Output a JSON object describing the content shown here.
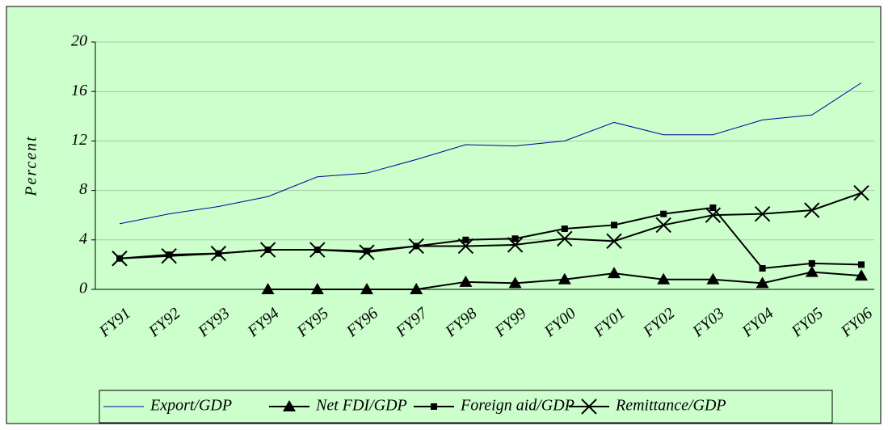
{
  "chart_data": {
    "type": "line",
    "y_label": "Percent",
    "categories": [
      "FY91",
      "FY92",
      "FY93",
      "FY94",
      "FY95",
      "FY96",
      "FY97",
      "FY98",
      "FY99",
      "FY00",
      "FY01",
      "FY02",
      "FY03",
      "FY04",
      "FY05",
      "FY06"
    ],
    "series": [
      {
        "name": "Export/GDP",
        "color": "#000099",
        "marker": "none",
        "values": [
          5.3,
          6.1,
          6.7,
          7.5,
          9.1,
          9.4,
          10.5,
          11.7,
          11.6,
          12.0,
          13.5,
          12.5,
          12.5,
          13.7,
          14.1,
          16.7
        ]
      },
      {
        "name": "Net FDI/GDP",
        "color": "#000000",
        "marker": "triangle",
        "values": [
          null,
          null,
          null,
          0,
          0,
          0,
          0,
          0.6,
          0.5,
          0.8,
          1.3,
          0.8,
          0.8,
          0.5,
          1.4,
          1.1
        ]
      },
      {
        "name": "Foreign aid/GDP",
        "color": "#000000",
        "marker": "square",
        "values": [
          2.5,
          2.8,
          2.9,
          3.2,
          3.2,
          3.1,
          3.5,
          4.0,
          4.1,
          4.9,
          5.2,
          6.1,
          6.6,
          1.7,
          2.1,
          2.0
        ]
      },
      {
        "name": "Remittance/GDP",
        "color": "#000000",
        "marker": "x",
        "values": [
          2.5,
          2.7,
          2.9,
          3.2,
          3.2,
          3.0,
          3.5,
          3.5,
          3.6,
          4.1,
          3.9,
          5.2,
          6.0,
          6.1,
          6.4,
          7.8
        ]
      }
    ],
    "ylim": [
      0,
      20
    ],
    "yticks": [
      0,
      4,
      8,
      12,
      16,
      20
    ],
    "grid": true,
    "legend": "bottom"
  }
}
